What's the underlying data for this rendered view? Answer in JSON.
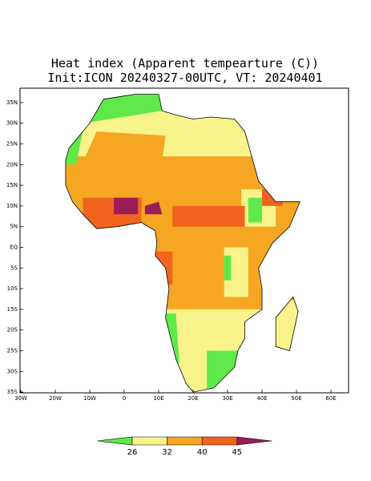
{
  "header": {
    "title": "Heat index (Apparent tempearture (C))",
    "subtitle": "Init:ICON 20240327-00UTC, VT: 20240401"
  },
  "map": {
    "lat_ticks": [
      {
        "value": 35,
        "label": "35N"
      },
      {
        "value": 30,
        "label": "30N"
      },
      {
        "value": 25,
        "label": "25N"
      },
      {
        "value": 20,
        "label": "20N"
      },
      {
        "value": 15,
        "label": "15N"
      },
      {
        "value": 10,
        "label": "10N"
      },
      {
        "value": 5,
        "label": "5N"
      },
      {
        "value": 0,
        "label": "EQ"
      },
      {
        "value": -5,
        "label": "5S"
      },
      {
        "value": -10,
        "label": "10S"
      },
      {
        "value": -15,
        "label": "15S"
      },
      {
        "value": -20,
        "label": "20S"
      },
      {
        "value": -25,
        "label": "25S"
      },
      {
        "value": -30,
        "label": "30S"
      },
      {
        "value": -35,
        "label": "35S"
      }
    ],
    "lon_ticks": [
      {
        "value": -30,
        "label": "30W"
      },
      {
        "value": -20,
        "label": "20W"
      },
      {
        "value": -10,
        "label": "10W"
      },
      0,
      {
        "value": 10,
        "label": "10E"
      },
      {
        "value": 20,
        "label": "20E"
      },
      {
        "value": 30,
        "label": "30E"
      },
      {
        "value": 40,
        "label": "40E"
      },
      {
        "value": 50,
        "label": "50E"
      },
      {
        "value": 60,
        "label": "60E"
      }
    ]
  },
  "colorbar": {
    "levels": [
      26,
      32,
      40,
      45
    ],
    "colors": [
      "#5fe84a",
      "#f8f38a",
      "#f5a623",
      "#f0641e",
      "#9b1d57"
    ]
  }
}
